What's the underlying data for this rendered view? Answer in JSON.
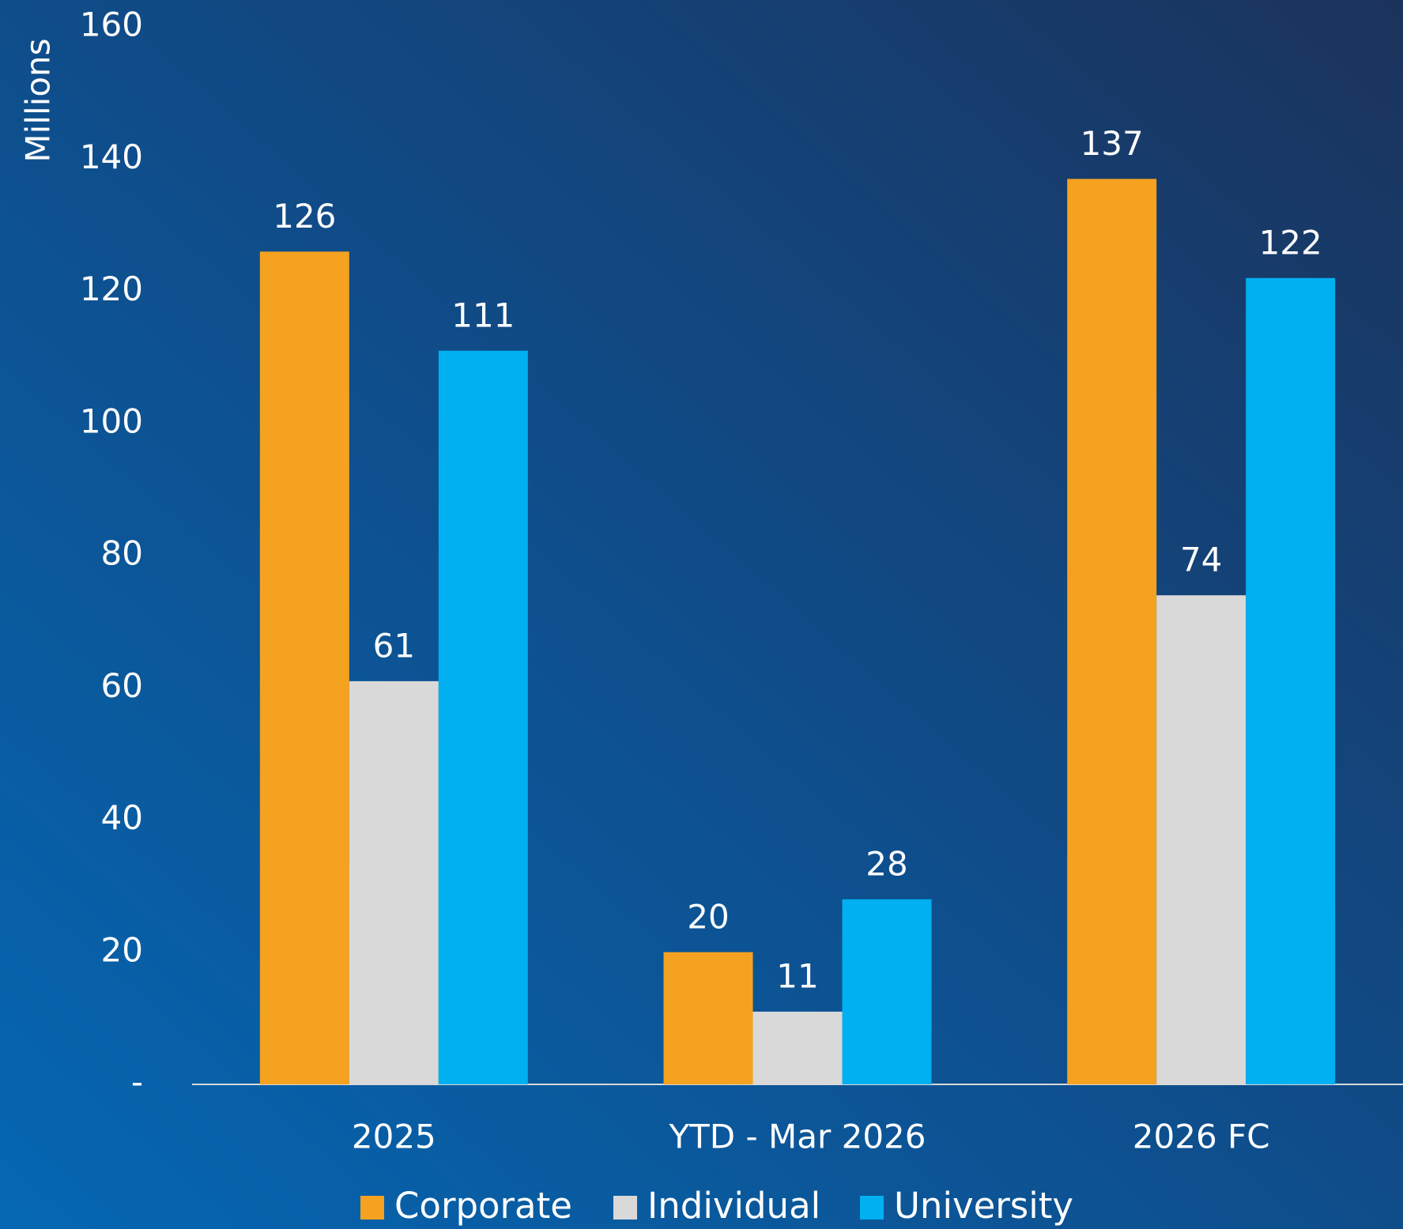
{
  "chart_data": {
    "type": "bar",
    "y_axis_label": "Millions",
    "categories": [
      "2025",
      "YTD - Mar 2026",
      "2026 FC"
    ],
    "series": [
      {
        "name": "Corporate",
        "color": "#f4a21f",
        "values": [
          126,
          20,
          137
        ]
      },
      {
        "name": "Individual",
        "color": "#d9d9d9",
        "values": [
          61,
          11,
          74
        ]
      },
      {
        "name": "University",
        "color": "#00b0f0",
        "values": [
          111,
          28,
          122
        ]
      }
    ],
    "ylim": [
      0,
      160
    ],
    "yticks": [
      {
        "value": 0,
        "label": "-"
      },
      20,
      40,
      60,
      80,
      100,
      120,
      140,
      160
    ],
    "grid": false,
    "legend": "bottom"
  }
}
